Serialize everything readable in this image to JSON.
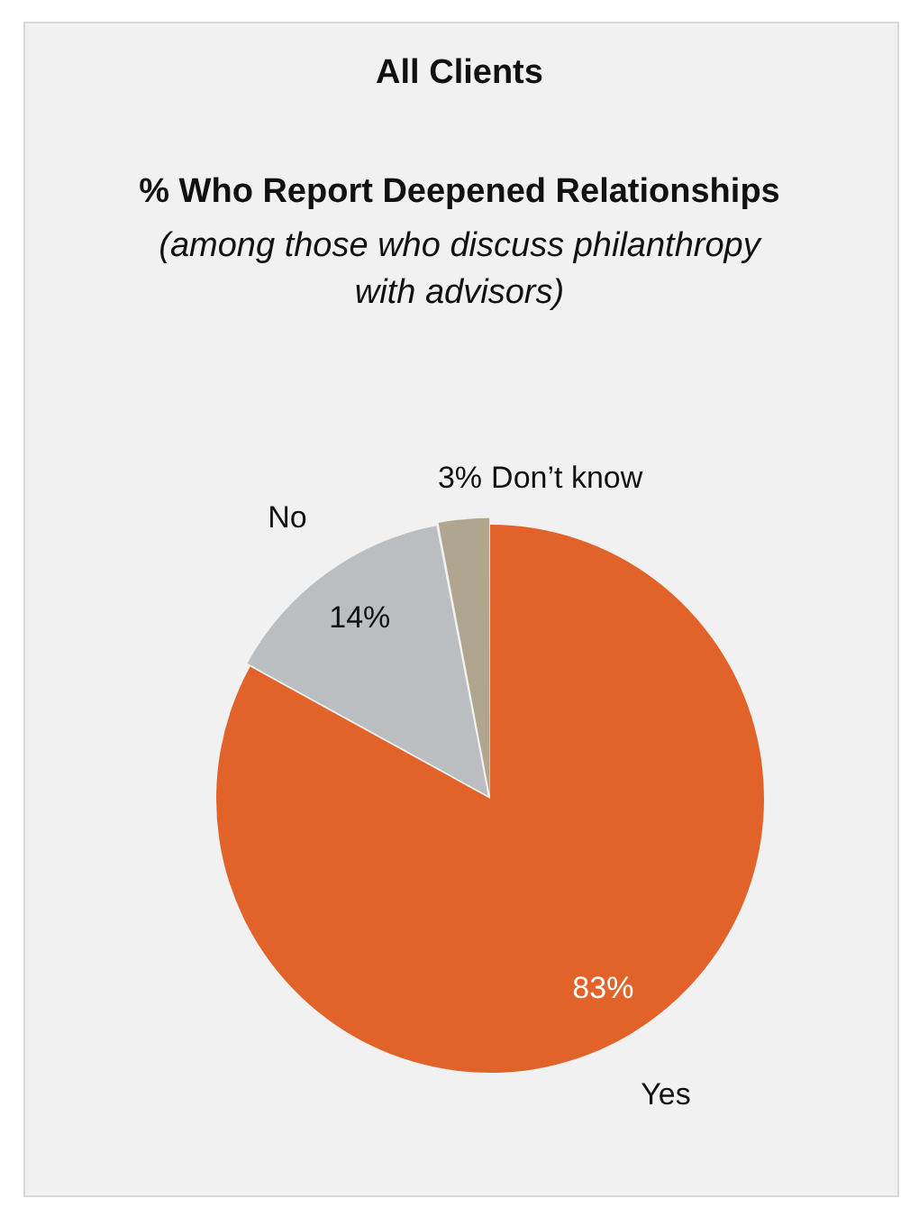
{
  "chart_data": {
    "type": "pie",
    "title": "All Clients",
    "subtitle": "% Who Report Deepened Relationships",
    "annotations": [
      "(among those who discuss philanthropy with advisors)"
    ],
    "categories": [
      "Yes",
      "No",
      "Don’t know"
    ],
    "values": [
      83,
      14,
      3
    ],
    "colors": [
      "#e2632a",
      "#bbbec1",
      "#b0a68f"
    ],
    "value_labels": [
      "83%",
      "14%",
      "3%"
    ]
  }
}
